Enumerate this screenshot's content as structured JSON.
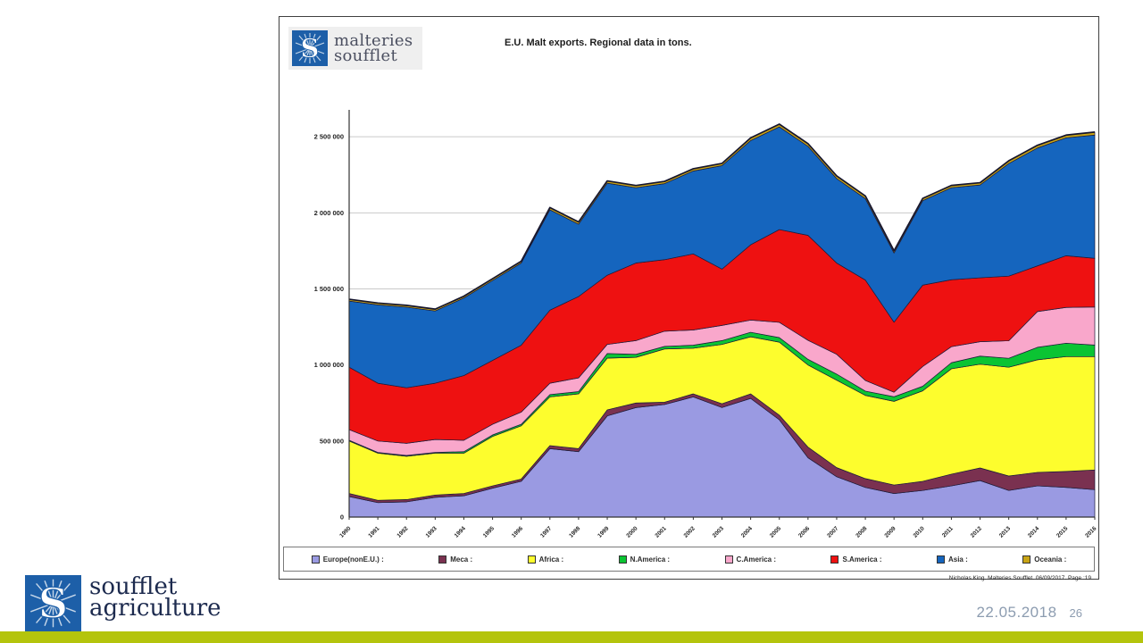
{
  "header": {
    "logo_line1": "malteries",
    "logo_line2": "soufflet"
  },
  "chart_data": {
    "type": "area",
    "stacked": true,
    "title": "E.U. Malt exports. Regional data in tons.",
    "xlabel": "",
    "ylabel": "",
    "grid": true,
    "legend_position": "bottom",
    "x": [
      "1990",
      "1991",
      "1992",
      "1993",
      "1994",
      "1995",
      "1996",
      "1997",
      "1998",
      "1999",
      "2000",
      "2001",
      "2002",
      "2003",
      "2004",
      "2005",
      "2006",
      "2007",
      "2008",
      "2009",
      "2010",
      "2011",
      "2012",
      "2013",
      "2014",
      "2015",
      "2016"
    ],
    "ylim": [
      0,
      2630000
    ],
    "yticks": [
      {
        "value": 0,
        "label": "0"
      },
      {
        "value": 500000,
        "label": "500 000"
      },
      {
        "value": 1000000,
        "label": "1 000 000"
      },
      {
        "value": 1500000,
        "label": "1 500 000"
      },
      {
        "value": 2000000,
        "label": "2 000 000"
      },
      {
        "value": 2500000,
        "label": "2 500 000"
      }
    ],
    "series": [
      {
        "name": "Europe(nonE.U.)",
        "legend_label": "Europe(nonE.U.) :",
        "color": "#9a9ae2",
        "values": [
          135000,
          95000,
          100000,
          130000,
          140000,
          190000,
          235000,
          450000,
          430000,
          665000,
          720000,
          740000,
          790000,
          720000,
          780000,
          640000,
          390000,
          265000,
          195000,
          155000,
          175000,
          205000,
          240000,
          175000,
          205000,
          195000,
          180000
        ]
      },
      {
        "name": "Meca",
        "legend_label": "Meca :",
        "color": "#7a3150",
        "values": [
          20000,
          15000,
          15000,
          15000,
          15000,
          15000,
          15000,
          20000,
          20000,
          40000,
          30000,
          15000,
          20000,
          25000,
          30000,
          30000,
          70000,
          60000,
          58000,
          56000,
          60000,
          77000,
          83000,
          95000,
          89000,
          105000,
          130000
        ]
      },
      {
        "name": "Africa",
        "legend_label": "Africa :",
        "color": "#fdfd2d",
        "values": [
          345000,
          310000,
          285000,
          275000,
          265000,
          325000,
          350000,
          320000,
          360000,
          340000,
          300000,
          350000,
          300000,
          390000,
          375000,
          480000,
          540000,
          575000,
          547000,
          550000,
          595000,
          693000,
          682000,
          715000,
          740000,
          755000,
          745000
        ]
      },
      {
        "name": "N.America",
        "legend_label": "N.America :",
        "color": "#0bc433",
        "values": [
          5000,
          5000,
          5000,
          5000,
          10000,
          10000,
          10000,
          15000,
          15000,
          30000,
          20000,
          17000,
          20000,
          25000,
          30000,
          30000,
          37000,
          40000,
          28000,
          30000,
          30000,
          40000,
          53000,
          59000,
          82000,
          88000,
          76000
        ]
      },
      {
        "name": "C.America",
        "legend_label": "C.America :",
        "color": "#f9a7cb",
        "values": [
          70000,
          75000,
          80000,
          85000,
          75000,
          70000,
          80000,
          75000,
          90000,
          60000,
          90000,
          100000,
          100000,
          100000,
          80000,
          100000,
          125000,
          130000,
          70000,
          30000,
          130000,
          105000,
          95000,
          115000,
          235000,
          235000,
          250000
        ]
      },
      {
        "name": "S.America",
        "legend_label": "S.America :",
        "color": "#ee1111",
        "values": [
          410000,
          380000,
          365000,
          370000,
          425000,
          420000,
          440000,
          480000,
          535000,
          455000,
          510000,
          470000,
          500000,
          370000,
          495000,
          610000,
          690000,
          600000,
          660000,
          460000,
          535000,
          440000,
          420000,
          425000,
          300000,
          340000,
          320000
        ]
      },
      {
        "name": "Asia",
        "legend_label": "Asia :",
        "color": "#1565be",
        "values": [
          435000,
          515000,
          530000,
          475000,
          510000,
          525000,
          540000,
          660000,
          475000,
          605000,
          495000,
          500000,
          545000,
          680000,
          685000,
          675000,
          585000,
          555000,
          535000,
          455000,
          555000,
          605000,
          610000,
          740000,
          775000,
          775000,
          810000
        ]
      },
      {
        "name": "Oceania",
        "legend_label": "Oceania :",
        "color": "#c8a415",
        "values": [
          12000,
          12000,
          12000,
          12000,
          12000,
          12000,
          12000,
          15000,
          15000,
          15000,
          15000,
          15000,
          15000,
          15000,
          18000,
          18000,
          18000,
          18000,
          18000,
          15000,
          15000,
          15000,
          15000,
          18000,
          18000,
          18000,
          20000
        ]
      }
    ]
  },
  "chart_footer": {
    "note": "Nicholas King. Malteries Soufflet. 06/09/2017. Page :19"
  },
  "footer": {
    "logo_line1": "soufflet",
    "logo_line2": "agriculture",
    "date": "22.05.2018",
    "page": "26"
  },
  "colors": {
    "panel_border": "#3f3f3f",
    "gridline": "#c9c9c9",
    "area_outline": "#1c1c3a",
    "top_outline": "#15152e",
    "brand_blue": "#1d5fa8",
    "brand_navy": "#1c2a4e",
    "date_gray": "#8c9cb0",
    "bottom_bar": "#b4c40c"
  }
}
